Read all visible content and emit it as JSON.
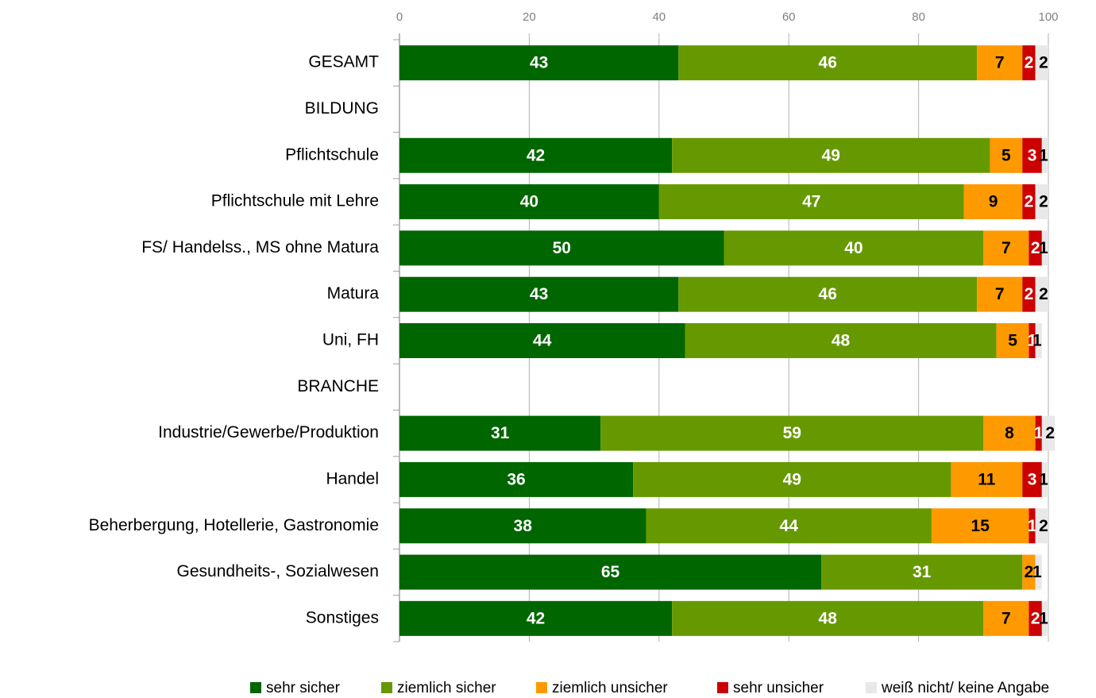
{
  "chart_data": {
    "type": "stacked-bar-horizontal",
    "categories": [
      "GESAMT",
      "BILDUNG",
      "Pflichtschule",
      "Pflichtschule mit Lehre",
      "FS/ Handelss., MS ohne Matura",
      "Matura",
      "Uni, FH",
      "BRANCHE",
      "Industrie/Gewerbe/Produktion",
      "Handel",
      "Beherbergung, Hotellerie, Gastronomie",
      "Gesundheits-, Sozialwesen",
      "Sonstiges"
    ],
    "series": [
      {
        "name": "sehr sicher",
        "color": "#006600",
        "label_color": "#ffffff",
        "values": [
          43,
          null,
          42,
          40,
          50,
          43,
          44,
          null,
          31,
          36,
          38,
          65,
          42
        ]
      },
      {
        "name": "ziemlich sicher",
        "color": "#669900",
        "label_color": "#ffffff",
        "values": [
          46,
          null,
          49,
          47,
          40,
          46,
          48,
          null,
          59,
          49,
          44,
          31,
          48
        ]
      },
      {
        "name": "ziemlich unsicher",
        "color": "#ff9900",
        "label_color": "#000000",
        "values": [
          7,
          null,
          5,
          9,
          7,
          7,
          5,
          null,
          8,
          11,
          15,
          2,
          7
        ]
      },
      {
        "name": "sehr unsicher",
        "color": "#cc0000",
        "label_color": "#ffffff",
        "values": [
          2,
          null,
          3,
          2,
          2,
          2,
          1,
          null,
          1,
          3,
          1,
          null,
          2
        ]
      },
      {
        "name": "weiß nicht/ keine Angabe",
        "color": "#e8e8e8",
        "label_color": "#000000",
        "values": [
          2,
          null,
          1,
          2,
          1,
          2,
          1,
          null,
          2,
          1,
          2,
          1,
          1
        ]
      }
    ],
    "xlim": [
      0,
      100
    ],
    "xticks": [
      0,
      20,
      40,
      60,
      80,
      100
    ],
    "grid": true,
    "legend": "bottom"
  }
}
